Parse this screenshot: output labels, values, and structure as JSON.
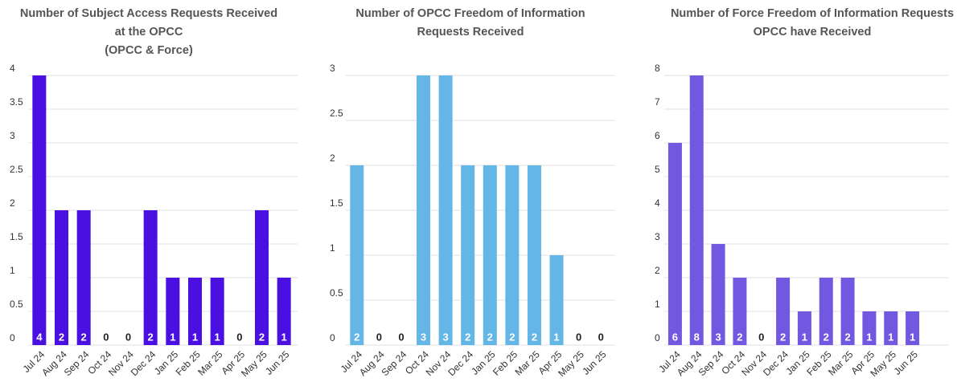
{
  "chart_data": [
    {
      "type": "bar",
      "title": [
        "Number of Subject Access Requests Received",
        "at the OPCC",
        "(OPCC & Force)"
      ],
      "categories": [
        "Jul 24",
        "Aug 24",
        "Sep 24",
        "Oct 24",
        "Nov 24",
        "Dec 24",
        "Jan 25",
        "Feb 25",
        "Mar 25",
        "Apr 25",
        "May 25",
        "Jun 25"
      ],
      "values": [
        4,
        2,
        2,
        0,
        0,
        2,
        1,
        1,
        1,
        0,
        2,
        1
      ],
      "color": "#4a10e2",
      "ylim": [
        0,
        4
      ],
      "yticks": [
        0,
        0.5,
        1,
        1.5,
        2,
        2.5,
        3,
        3.5,
        4
      ],
      "grid": true
    },
    {
      "type": "bar",
      "title": [
        "Number of OPCC Freedom of Information",
        "Requests Received"
      ],
      "categories": [
        "Jul 24",
        "Aug 24",
        "Sep 24",
        "Oct 24",
        "Nov 24",
        "Dec 24",
        "Jan 25",
        "Feb 25",
        "Mar 25",
        "Apr 25",
        "May 25",
        "Jun 25"
      ],
      "values": [
        2,
        0,
        0,
        3,
        3,
        2,
        2,
        2,
        2,
        1,
        0,
        0
      ],
      "color": "#63b6e6",
      "ylim": [
        0,
        3
      ],
      "yticks": [
        0,
        0.5,
        1,
        1.5,
        2,
        2.5,
        3
      ],
      "grid": true
    },
    {
      "type": "bar",
      "title": [
        "Number of Force Freedom of Information Requests",
        "OPCC have Received"
      ],
      "categories": [
        "Jul 24",
        "Aug 24",
        "Sep 24",
        "Oct 24",
        "Nov 24",
        "Dec 24",
        "Jan 25",
        "Feb 25",
        "Mar 25",
        "Apr 25",
        "May 25",
        "Jun 25"
      ],
      "values": [
        6,
        8,
        3,
        2,
        0,
        2,
        1,
        2,
        2,
        1,
        1,
        1
      ],
      "color": "#7258e0",
      "ylim": [
        0,
        8
      ],
      "yticks": [
        0,
        1,
        2,
        3,
        4,
        5,
        6,
        7,
        8
      ],
      "grid": true
    }
  ]
}
